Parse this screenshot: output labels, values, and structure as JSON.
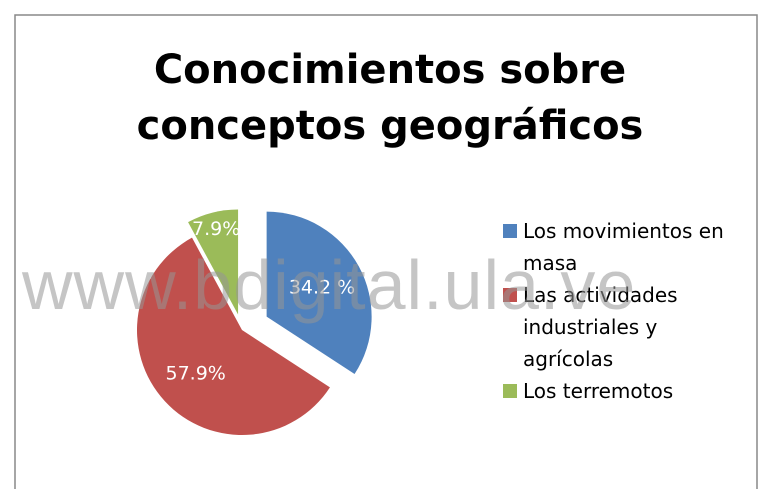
{
  "chart_data": {
    "type": "pie",
    "title": "Conocimientos sobre conceptos geográficos",
    "categories": [
      "Los movimientos en masa",
      "Las actividades industriales y agrícolas",
      "Los terremotos"
    ],
    "values": [
      34.2,
      57.9,
      7.9
    ],
    "value_labels": [
      "34.2 %",
      "57.9%",
      "7.9%"
    ],
    "colors": [
      "#4f81bd",
      "#c0504d",
      "#9bbb59"
    ],
    "legend": "right",
    "watermark": "www.bdigital.ula.ve"
  }
}
